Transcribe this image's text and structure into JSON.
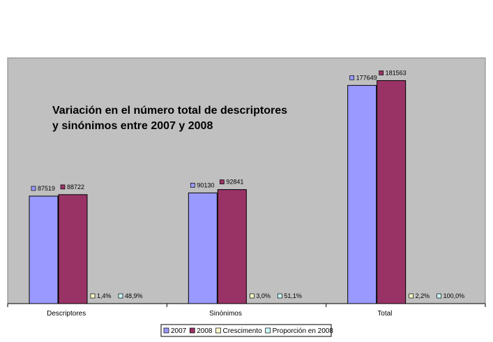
{
  "chart_data": {
    "type": "bar",
    "title_lines": [
      "Variación en el número total de descriptores",
      "y sinónimos entre 2007 y 2008"
    ],
    "categories": [
      "Descriptores",
      "Sinónimos",
      "Total"
    ],
    "series": [
      {
        "name": "2007",
        "color": "#9999ff",
        "values": [
          87519,
          90130,
          177649
        ],
        "labels": [
          "87519",
          "90130",
          "177649"
        ]
      },
      {
        "name": "2008",
        "color": "#993366",
        "values": [
          88722,
          92841,
          181563
        ],
        "labels": [
          "88722",
          "92841",
          "181563"
        ]
      },
      {
        "name": "Crescimento",
        "color": "#ffffcc",
        "values": [
          1.4,
          3.0,
          2.2
        ],
        "labels": [
          "1,4%",
          "3,0%",
          "2,2%"
        ]
      },
      {
        "name": "Proporción en 2008",
        "color": "#ccffff",
        "values": [
          48.9,
          51.1,
          100.0
        ],
        "labels": [
          "48,9%",
          "51,1%",
          "100,0%"
        ]
      }
    ],
    "ylim": [
      0,
      200000
    ],
    "grid": false,
    "legend_position": "bottom",
    "plot_background": "#c0c0c0"
  }
}
